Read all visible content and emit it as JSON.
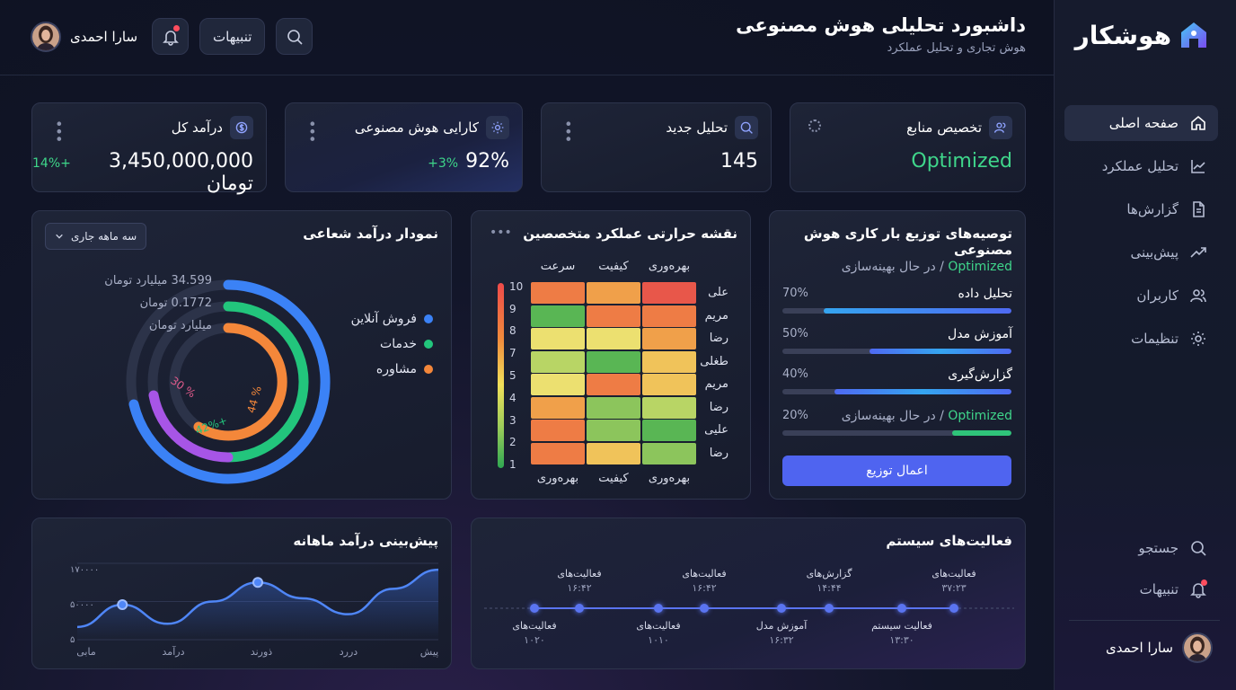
{
  "brand": {
    "name": "هوشکار"
  },
  "header": {
    "title": "داشبورد تحلیلی هوش مصنوعی",
    "subtitle": "هوش تجاری و تحلیل عملکرد",
    "alerts_label": "تنبیهات",
    "user_name": "سارا احمدی"
  },
  "sidebar": {
    "items": [
      {
        "label": "صفحه اصلی",
        "icon": "home-icon",
        "active": true
      },
      {
        "label": "تحلیل عملکرد",
        "icon": "chart-icon"
      },
      {
        "label": "گزارش‌ها",
        "icon": "document-icon"
      },
      {
        "label": "پیش‌بینی",
        "icon": "trend-icon"
      },
      {
        "label": "کاربران",
        "icon": "users-icon"
      },
      {
        "label": "تنظیمات",
        "icon": "gear-icon"
      }
    ],
    "search_label": "جستجو",
    "notifications_label": "تنبیهات",
    "user_name": "سارا احمدی"
  },
  "stats": [
    {
      "title": "تخصیص منابع",
      "value": "Optimized",
      "delta": "",
      "icon": "users-icon"
    },
    {
      "title": "تحلیل جدید",
      "value": "145",
      "delta": "",
      "icon": "search-icon"
    },
    {
      "title": "کارایی هوش مصنوعی",
      "value": "92%",
      "delta": "+3%",
      "icon": "gear-icon"
    },
    {
      "title": "درآمد کل",
      "value": "3,450,000,000 تومان",
      "delta": "+14%",
      "icon": "dollar-icon"
    }
  ],
  "radial": {
    "title": "نمودار درآمد شعاعی",
    "period": "سه ماهه جاری",
    "labels": [
      "34.599 میلیارد تومان",
      "0.1772 تومان",
      "میلیارد تومان"
    ],
    "ring_labels": [
      "% 44",
      "+42%",
      "% 30"
    ],
    "legend": [
      "فروش آنلاین",
      "خدمات",
      "مشاوره"
    ],
    "colors": [
      "#3b82f6",
      "#22c57c",
      "#f4873a",
      "#a755e6"
    ]
  },
  "heatmap": {
    "title": "نقشه حرارتی عملکرد متخصصین",
    "columns_top": [
      "بهره‌وری",
      "کیفیت",
      "سرعت"
    ],
    "columns_bottom": [
      "بهره‌وری",
      "کیفیت",
      "بهره‌وری"
    ],
    "rows": [
      "علی",
      "مریم",
      "رضا",
      "طغلی",
      "مریم",
      "رضا",
      "علیی",
      "رضا"
    ],
    "scale": [
      "10",
      "9",
      "8",
      "7",
      "5",
      "4",
      "3",
      "2",
      "1"
    ],
    "cells": [
      [
        9,
        7,
        8
      ],
      [
        8,
        8,
        2
      ],
      [
        7,
        5,
        5
      ],
      [
        6,
        2,
        4
      ],
      [
        6,
        8,
        5
      ],
      [
        4,
        3,
        7
      ],
      [
        2,
        3,
        8
      ],
      [
        3,
        6,
        8
      ]
    ]
  },
  "recommend": {
    "title": "توصیه‌های توزیع بار کاری هوش مصنوعی",
    "status_word": "Optimized",
    "status_suffix": "/ در حال بهینه‌سازی",
    "rows": [
      {
        "label": "تحلیل داده",
        "pct": "70%",
        "value": 0.7
      },
      {
        "label": "آموزش مدل",
        "pct": "50%",
        "value": 0.5
      },
      {
        "label": "گزارش‌گیری",
        "pct": "40%",
        "value": 0.4
      }
    ],
    "last_pct": "20%",
    "last_value": 0.2,
    "apply_label": "اعمال توزیع"
  },
  "forecast": {
    "title": "پیش‌بینی درآمد ماهانه",
    "y_ticks": [
      "۱۷۰۰۰۰",
      "۵۰۰۰۰",
      "۵"
    ],
    "x_ticks": [
      "پیش",
      "دررد",
      "ذورند",
      "درآمد",
      "مابی"
    ]
  },
  "chart_data": {
    "type": "line",
    "title": "پیش‌بینی درآمد ماهانه",
    "xlabel": "",
    "ylabel": "",
    "x": [
      "مابی",
      "",
      "درآمد",
      "",
      "ذورند",
      "",
      "دررد",
      "",
      "پیش"
    ],
    "values": [
      20000,
      55000,
      25000,
      60000,
      90000,
      65000,
      40000,
      80000,
      110000
    ],
    "ylim": [
      0,
      120000
    ]
  },
  "timeline": {
    "title": "فعالیت‌های سیستم",
    "top": [
      {
        "label": "فعالیت‌های",
        "time": "۳۷:۲۳"
      },
      {
        "label": "گزارش‌های",
        "time": "۱۴:۴۴"
      },
      {
        "label": "فعالیت‌های",
        "time": "۱۶:۴۲"
      },
      {
        "label": "فعالیت‌های",
        "time": "۱۶:۴۲"
      }
    ],
    "bottom": [
      {
        "label": "فعالیت سیستم",
        "time": "۱۳:۳۰"
      },
      {
        "label": "آموزش مدل",
        "time": "۱۶:۳۲"
      },
      {
        "label": "فعالیت‌های",
        "time": "۱۰۱۰"
      },
      {
        "label": "فعالیت‌های",
        "time": "۱۰۲۰"
      }
    ]
  }
}
